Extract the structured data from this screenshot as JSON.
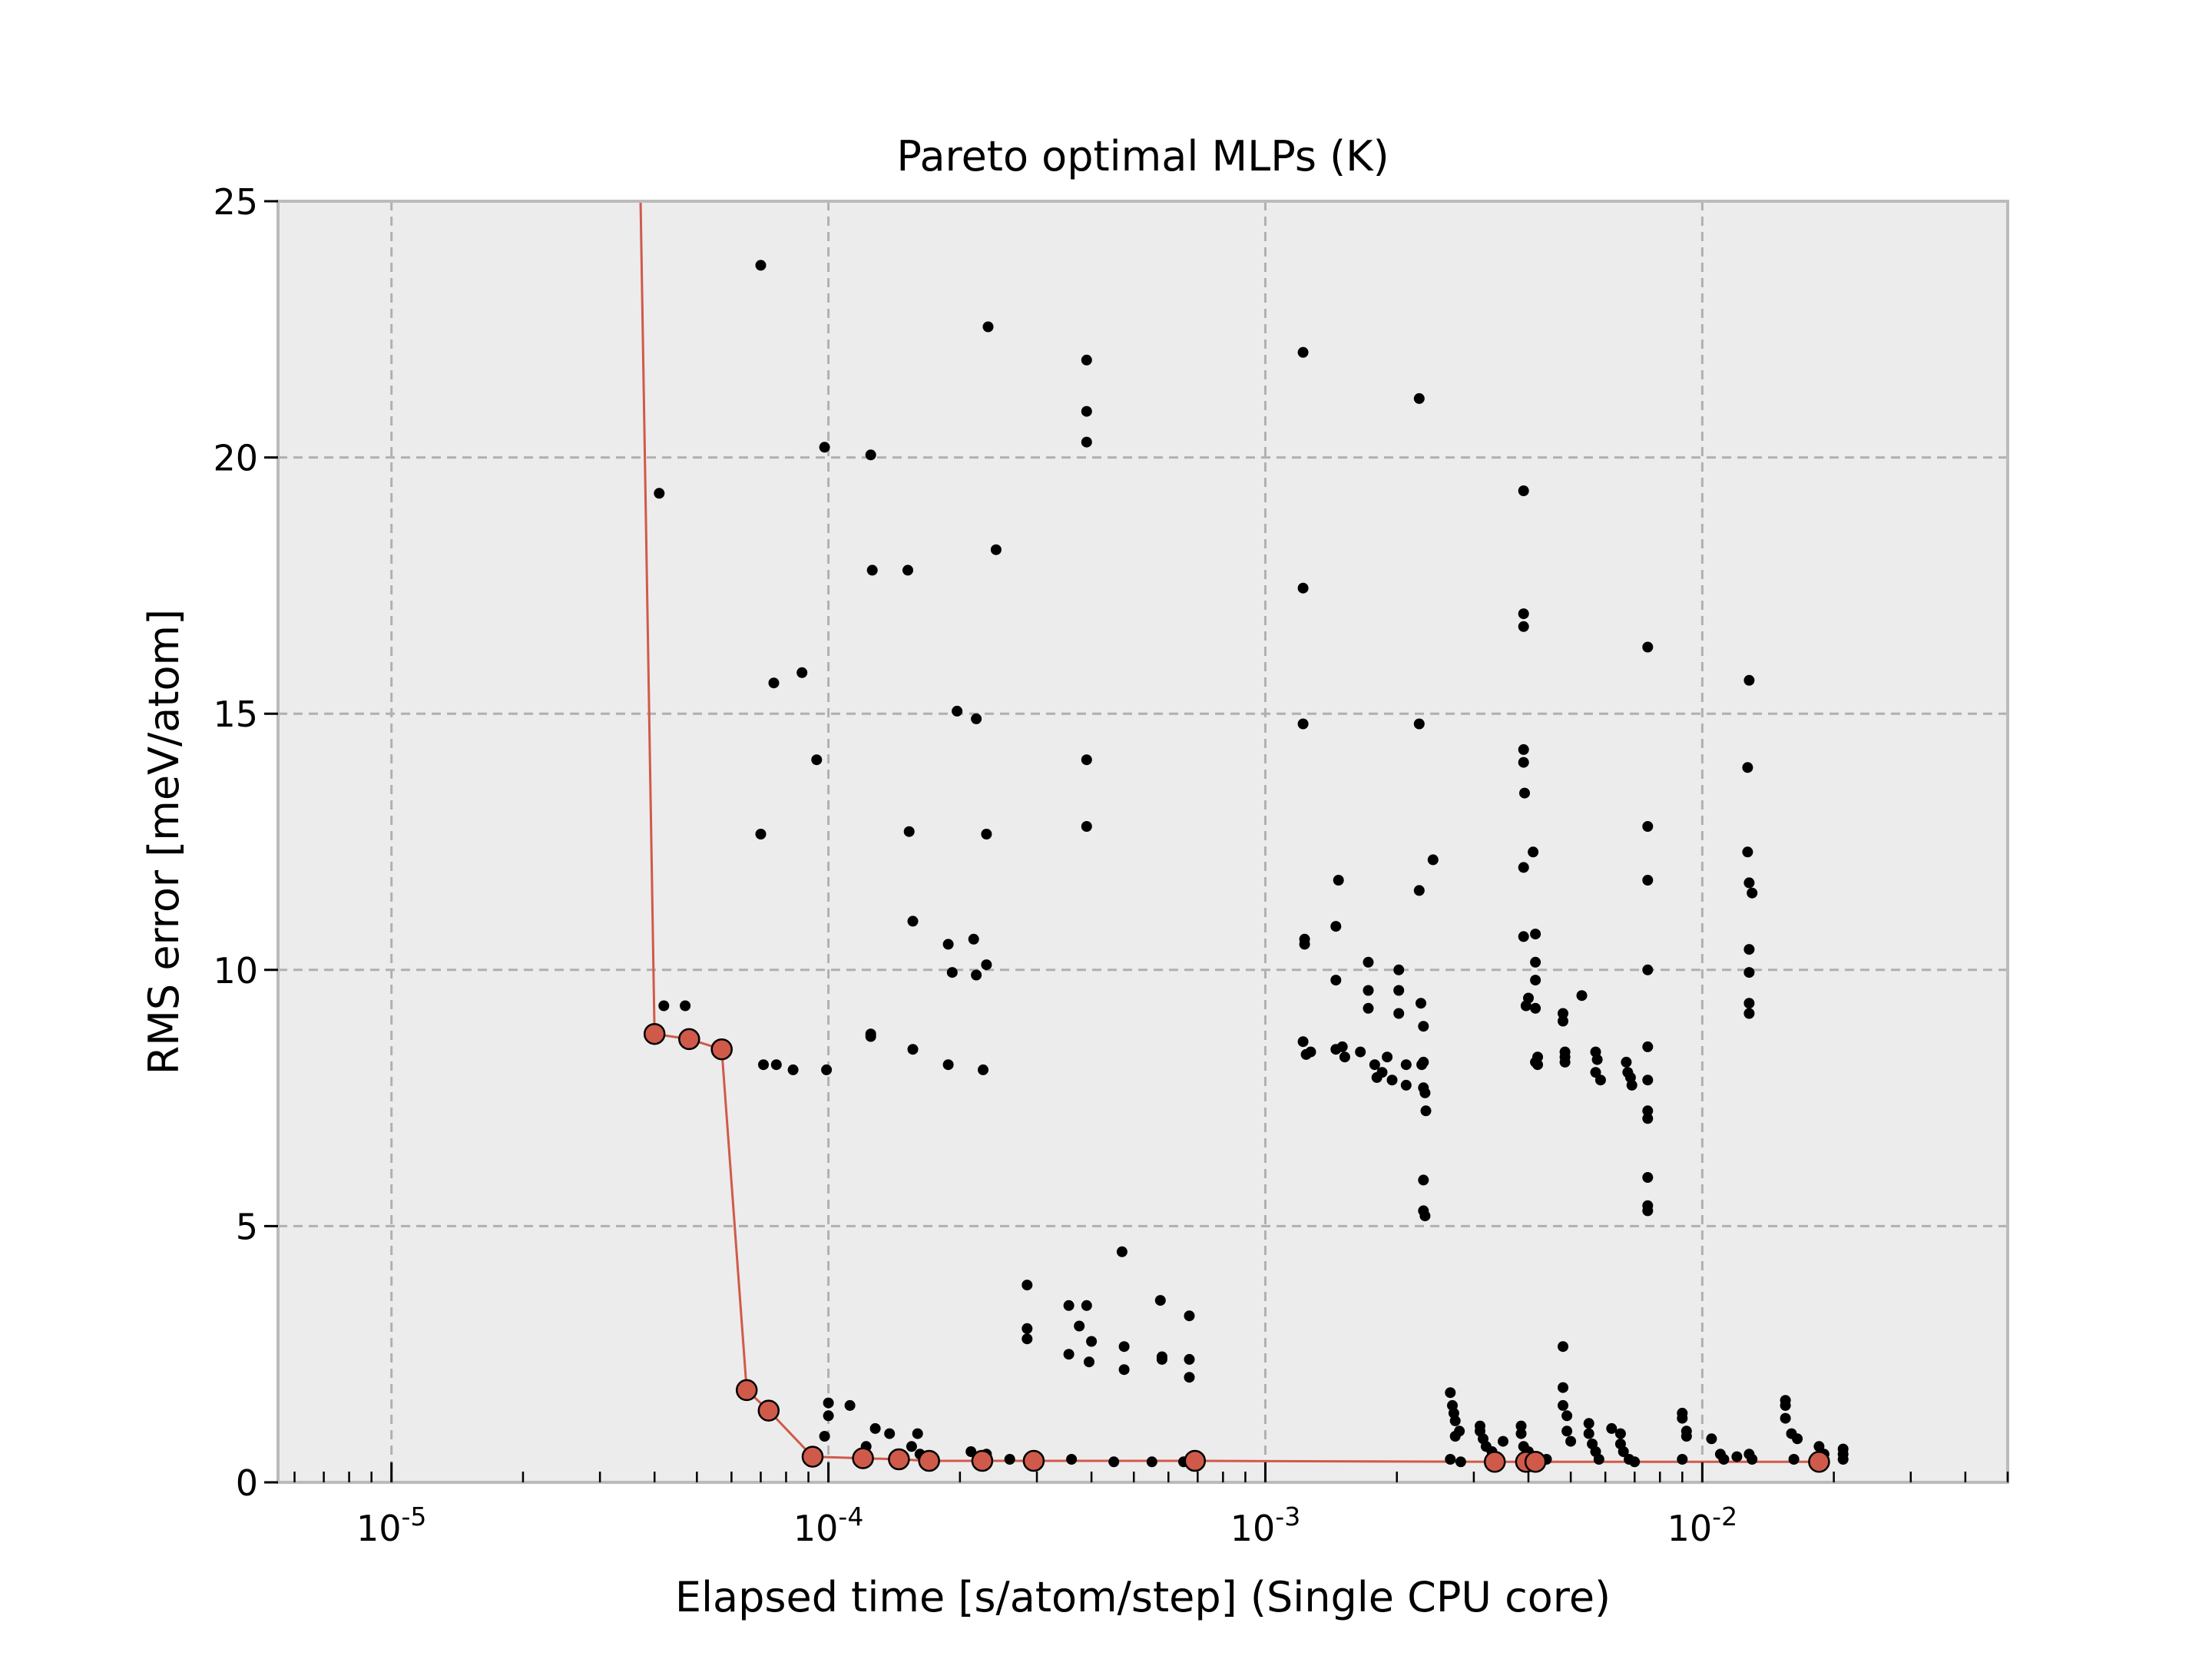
{
  "chart_data": {
    "type": "scatter",
    "title": "Pareto optimal MLPs (K)",
    "xlabel": "Elapsed time [s/atom/step] (Single CPU core)",
    "ylabel": "RMS error [meV/atom]",
    "xscale": "log",
    "xlim": [
      5.5e-06,
      0.05
    ],
    "ylim": [
      0,
      25
    ],
    "grid": true,
    "y_ticks": [
      0,
      5,
      10,
      15,
      20,
      25
    ],
    "x_ticks": [
      {
        "value": 1e-05,
        "base": "10",
        "exp": "-5"
      },
      {
        "value": 0.0001,
        "base": "10",
        "exp": "-4"
      },
      {
        "value": 0.001,
        "base": "10",
        "exp": "-3"
      },
      {
        "value": 0.01,
        "base": "10",
        "exp": "-2"
      }
    ],
    "colors": {
      "background": "#ececec",
      "frame": "#bbbbbb",
      "grid": "#b0b0b0",
      "points": "#000000",
      "pareto": "#d05a4a"
    },
    "series": [
      {
        "role": "all models",
        "points": [
          [
            7e-05,
            23.75
          ],
          [
            4.1e-05,
            19.3
          ],
          [
            4.2e-05,
            9.3
          ],
          [
            4.7e-05,
            9.3
          ],
          [
            7.5e-05,
            15.6
          ],
          [
            8.7e-05,
            15.8
          ],
          [
            9.4e-05,
            14.1
          ],
          [
            7e-05,
            12.65
          ],
          [
            7.1e-05,
            8.15
          ],
          [
            7.6e-05,
            8.15
          ],
          [
            8.3e-05,
            8.05
          ],
          [
            9.9e-05,
            8.05
          ],
          [
            9.8e-05,
            20.2
          ],
          [
            0.000125,
            20.05
          ],
          [
            0.000126,
            17.8
          ],
          [
            0.000152,
            17.8
          ],
          [
            0.000153,
            12.7
          ],
          [
            0.000156,
            10.95
          ],
          [
            0.000156,
            8.45
          ],
          [
            0.000125,
            8.75
          ],
          [
            0.000125,
            8.7
          ],
          [
            0.000188,
            10.5
          ],
          [
            0.000192,
            9.95
          ],
          [
            0.000197,
            15.05
          ],
          [
            0.000218,
            14.9
          ],
          [
            0.000215,
            10.6
          ],
          [
            0.000218,
            9.9
          ],
          [
            0.00023,
            10.1
          ],
          [
            0.000188,
            8.15
          ],
          [
            0.000226,
            8.05
          ],
          [
            0.00023,
            12.65
          ],
          [
            0.000242,
            18.2
          ],
          [
            0.000232,
            22.55
          ],
          [
            0.00039,
            21.9
          ],
          [
            0.00039,
            20.9
          ],
          [
            0.00039,
            20.3
          ],
          [
            0.00039,
            14.1
          ],
          [
            0.00039,
            12.8
          ],
          [
            0.00122,
            22.05
          ],
          [
            0.00122,
            17.45
          ],
          [
            0.00122,
            14.8
          ],
          [
            0.00123,
            10.6
          ],
          [
            0.00123,
            10.5
          ],
          [
            0.00122,
            8.6
          ],
          [
            0.00127,
            8.4
          ],
          [
            0.00124,
            8.35
          ],
          [
            0.00147,
            11.75
          ],
          [
            0.00145,
            10.85
          ],
          [
            0.00145,
            9.8
          ],
          [
            0.0015,
            8.5
          ],
          [
            0.00145,
            8.45
          ],
          [
            0.00152,
            8.3
          ],
          [
            0.00165,
            8.4
          ],
          [
            0.00172,
            10.15
          ],
          [
            0.00172,
            9.6
          ],
          [
            0.00172,
            9.25
          ],
          [
            0.00178,
            8.15
          ],
          [
            0.00185,
            8.0
          ],
          [
            0.0019,
            8.3
          ],
          [
            0.0018,
            7.9
          ],
          [
            0.00195,
            7.85
          ],
          [
            0.00202,
            10.0
          ],
          [
            0.00202,
            9.6
          ],
          [
            0.00202,
            9.15
          ],
          [
            0.0021,
            8.15
          ],
          [
            0.0021,
            7.75
          ],
          [
            0.00225,
            21.15
          ],
          [
            0.00225,
            14.8
          ],
          [
            0.00225,
            11.55
          ],
          [
            0.00242,
            12.15
          ],
          [
            0.00227,
            9.35
          ],
          [
            0.0023,
            8.9
          ],
          [
            0.0023,
            8.2
          ],
          [
            0.00228,
            8.15
          ],
          [
            0.0023,
            7.7
          ],
          [
            0.00232,
            7.6
          ],
          [
            0.00233,
            7.25
          ],
          [
            0.0023,
            5.9
          ],
          [
            0.0023,
            5.3
          ],
          [
            0.00232,
            5.2
          ],
          [
            0.0039,
            19.35
          ],
          [
            0.0039,
            16.95
          ],
          [
            0.0039,
            16.7
          ],
          [
            0.0039,
            14.3
          ],
          [
            0.0039,
            14.05
          ],
          [
            0.00392,
            13.45
          ],
          [
            0.0039,
            12.0
          ],
          [
            0.0041,
            12.3
          ],
          [
            0.0039,
            10.65
          ],
          [
            0.00415,
            10.7
          ],
          [
            0.00415,
            10.15
          ],
          [
            0.00415,
            9.8
          ],
          [
            0.004,
            9.45
          ],
          [
            0.00395,
            9.3
          ],
          [
            0.00415,
            9.25
          ],
          [
            0.0042,
            8.3
          ],
          [
            0.00415,
            8.2
          ],
          [
            0.0042,
            8.15
          ],
          [
            0.0048,
            9.15
          ],
          [
            0.0048,
            9.0
          ],
          [
            0.0053,
            9.5
          ],
          [
            0.00485,
            8.4
          ],
          [
            0.00485,
            8.3
          ],
          [
            0.00485,
            8.2
          ],
          [
            0.0057,
            8.4
          ],
          [
            0.00575,
            8.25
          ],
          [
            0.0057,
            8.0
          ],
          [
            0.00585,
            7.85
          ],
          [
            0.0067,
            8.2
          ],
          [
            0.00675,
            8.0
          ],
          [
            0.00685,
            7.9
          ],
          [
            0.0069,
            7.75
          ],
          [
            0.0075,
            16.3
          ],
          [
            0.0075,
            12.8
          ],
          [
            0.0075,
            11.75
          ],
          [
            0.0075,
            10.0
          ],
          [
            0.0075,
            8.5
          ],
          [
            0.0075,
            7.85
          ],
          [
            0.0075,
            7.25
          ],
          [
            0.0075,
            7.1
          ],
          [
            0.0075,
            5.95
          ],
          [
            0.0075,
            5.4
          ],
          [
            0.0075,
            5.3
          ],
          [
            0.0128,
            15.65
          ],
          [
            0.0127,
            13.95
          ],
          [
            0.0127,
            12.3
          ],
          [
            0.0128,
            11.7
          ],
          [
            0.013,
            11.5
          ],
          [
            0.0128,
            10.4
          ],
          [
            0.0128,
            9.95
          ],
          [
            0.0128,
            9.35
          ],
          [
            0.0128,
            9.15
          ],
          [
            0.000285,
            3.85
          ],
          [
            0.000285,
            3.0
          ],
          [
            0.000285,
            2.8
          ],
          [
            0.000355,
            3.45
          ],
          [
            0.000355,
            2.5
          ],
          [
            0.000375,
            3.05
          ],
          [
            0.00039,
            3.45
          ],
          [
            0.0004,
            2.75
          ],
          [
            0.000395,
            2.35
          ],
          [
            0.00047,
            4.5
          ],
          [
            0.000475,
            2.65
          ],
          [
            0.000475,
            2.2
          ],
          [
            0.000575,
            3.55
          ],
          [
            0.00058,
            2.45
          ],
          [
            0.00058,
            2.4
          ],
          [
            0.00067,
            3.25
          ],
          [
            0.00067,
            2.4
          ],
          [
            0.00067,
            2.05
          ],
          [
            0.0001,
            1.55
          ],
          [
            0.0001,
            1.3
          ],
          [
            9.8e-05,
            0.9
          ],
          [
            0.000112,
            1.5
          ],
          [
            0.000128,
            1.05
          ],
          [
            0.000138,
            0.95
          ],
          [
            0.00016,
            0.95
          ],
          [
            0.000155,
            0.7
          ],
          [
            0.000162,
            0.55
          ],
          [
            0.000122,
            0.7
          ],
          [
            0.000212,
            0.6
          ],
          [
            0.00023,
            0.55
          ],
          [
            0.00026,
            0.45
          ],
          [
            0.0003,
            0.4
          ],
          [
            0.00036,
            0.45
          ],
          [
            0.00045,
            0.4
          ],
          [
            0.00055,
            0.4
          ],
          [
            0.00065,
            0.4
          ],
          [
            0.00265,
            1.75
          ],
          [
            0.00268,
            1.5
          ],
          [
            0.0027,
            1.35
          ],
          [
            0.00272,
            1.2
          ],
          [
            0.00278,
            1.0
          ],
          [
            0.00272,
            0.9
          ],
          [
            0.00265,
            0.45
          ],
          [
            0.0028,
            0.4
          ],
          [
            0.0031,
            1.1
          ],
          [
            0.0031,
            1.0
          ],
          [
            0.00315,
            0.85
          ],
          [
            0.0032,
            0.7
          ],
          [
            0.0033,
            0.6
          ],
          [
            0.0035,
            0.8
          ],
          [
            0.00385,
            1.1
          ],
          [
            0.00385,
            0.95
          ],
          [
            0.0039,
            0.7
          ],
          [
            0.004,
            0.6
          ],
          [
            0.0042,
            0.5
          ],
          [
            0.0044,
            0.45
          ],
          [
            0.0048,
            2.65
          ],
          [
            0.0048,
            1.85
          ],
          [
            0.0048,
            1.5
          ],
          [
            0.0049,
            1.3
          ],
          [
            0.0049,
            1.0
          ],
          [
            0.005,
            0.8
          ],
          [
            0.0055,
            1.15
          ],
          [
            0.0055,
            0.95
          ],
          [
            0.0056,
            0.75
          ],
          [
            0.0057,
            0.6
          ],
          [
            0.0058,
            0.45
          ],
          [
            0.0062,
            1.05
          ],
          [
            0.0065,
            0.95
          ],
          [
            0.0065,
            0.75
          ],
          [
            0.0066,
            0.6
          ],
          [
            0.0068,
            0.45
          ],
          [
            0.007,
            0.4
          ],
          [
            0.009,
            1.35
          ],
          [
            0.009,
            1.25
          ],
          [
            0.0092,
            1.0
          ],
          [
            0.0092,
            0.9
          ],
          [
            0.009,
            0.45
          ],
          [
            0.0105,
            0.85
          ],
          [
            0.011,
            0.55
          ],
          [
            0.0112,
            0.45
          ],
          [
            0.012,
            0.5
          ],
          [
            0.0128,
            0.55
          ],
          [
            0.013,
            0.45
          ],
          [
            0.0155,
            1.6
          ],
          [
            0.0155,
            1.5
          ],
          [
            0.0155,
            1.25
          ],
          [
            0.016,
            0.95
          ],
          [
            0.0165,
            0.85
          ],
          [
            0.0162,
            0.45
          ],
          [
            0.0185,
            0.7
          ],
          [
            0.019,
            0.55
          ],
          [
            0.021,
            0.65
          ],
          [
            0.021,
            0.55
          ],
          [
            0.021,
            0.45
          ]
        ]
      },
      {
        "role": "pareto front",
        "points": [
          [
            3.7e-05,
            26.0
          ],
          [
            4e-05,
            8.75
          ],
          [
            4.8e-05,
            8.65
          ],
          [
            5.7e-05,
            8.45
          ],
          [
            6.5e-05,
            1.8
          ],
          [
            7.3e-05,
            1.4
          ],
          [
            9.2e-05,
            0.5
          ],
          [
            0.00012,
            0.47
          ],
          [
            0.000145,
            0.45
          ],
          [
            0.00017,
            0.42
          ],
          [
            0.000225,
            0.42
          ],
          [
            0.000295,
            0.42
          ],
          [
            0.00069,
            0.42
          ],
          [
            0.00335,
            0.4
          ],
          [
            0.00395,
            0.4
          ],
          [
            0.00415,
            0.4
          ],
          [
            0.0185,
            0.4
          ]
        ]
      }
    ]
  }
}
